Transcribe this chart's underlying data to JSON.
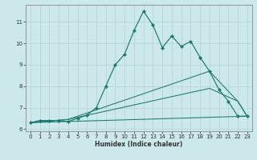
{
  "xlabel": "Humidex (Indice chaleur)",
  "ylabel": "",
  "bg_color": "#cce8eb",
  "line_color": "#1a7a6e",
  "grid_color": "#b8d8dc",
  "xlim": [
    -0.5,
    23.5
  ],
  "ylim": [
    5.9,
    11.8
  ],
  "yticks": [
    6,
    7,
    8,
    9,
    10,
    11
  ],
  "xticks": [
    0,
    1,
    2,
    3,
    4,
    5,
    6,
    7,
    8,
    9,
    10,
    11,
    12,
    13,
    14,
    15,
    16,
    17,
    18,
    19,
    20,
    21,
    22,
    23
  ],
  "main_x": [
    0,
    1,
    2,
    3,
    4,
    5,
    6,
    7,
    8,
    9,
    10,
    11,
    12,
    13,
    14,
    15,
    16,
    17,
    18,
    19,
    20,
    21,
    22,
    23
  ],
  "main_y": [
    6.3,
    6.4,
    6.4,
    6.4,
    6.35,
    6.5,
    6.65,
    7.0,
    8.0,
    9.0,
    9.5,
    10.6,
    11.5,
    10.85,
    9.8,
    10.35,
    9.85,
    10.1,
    9.35,
    8.7,
    7.85,
    7.3,
    6.6,
    6.6
  ],
  "line2_x": [
    0,
    4,
    19,
    22,
    23
  ],
  "line2_y": [
    6.3,
    6.45,
    8.7,
    7.3,
    6.6
  ],
  "line3_x": [
    0,
    4,
    19,
    22,
    23
  ],
  "line3_y": [
    6.3,
    6.45,
    7.9,
    7.3,
    6.6
  ],
  "line4_x": [
    0,
    23
  ],
  "line4_y": [
    6.3,
    6.6
  ]
}
